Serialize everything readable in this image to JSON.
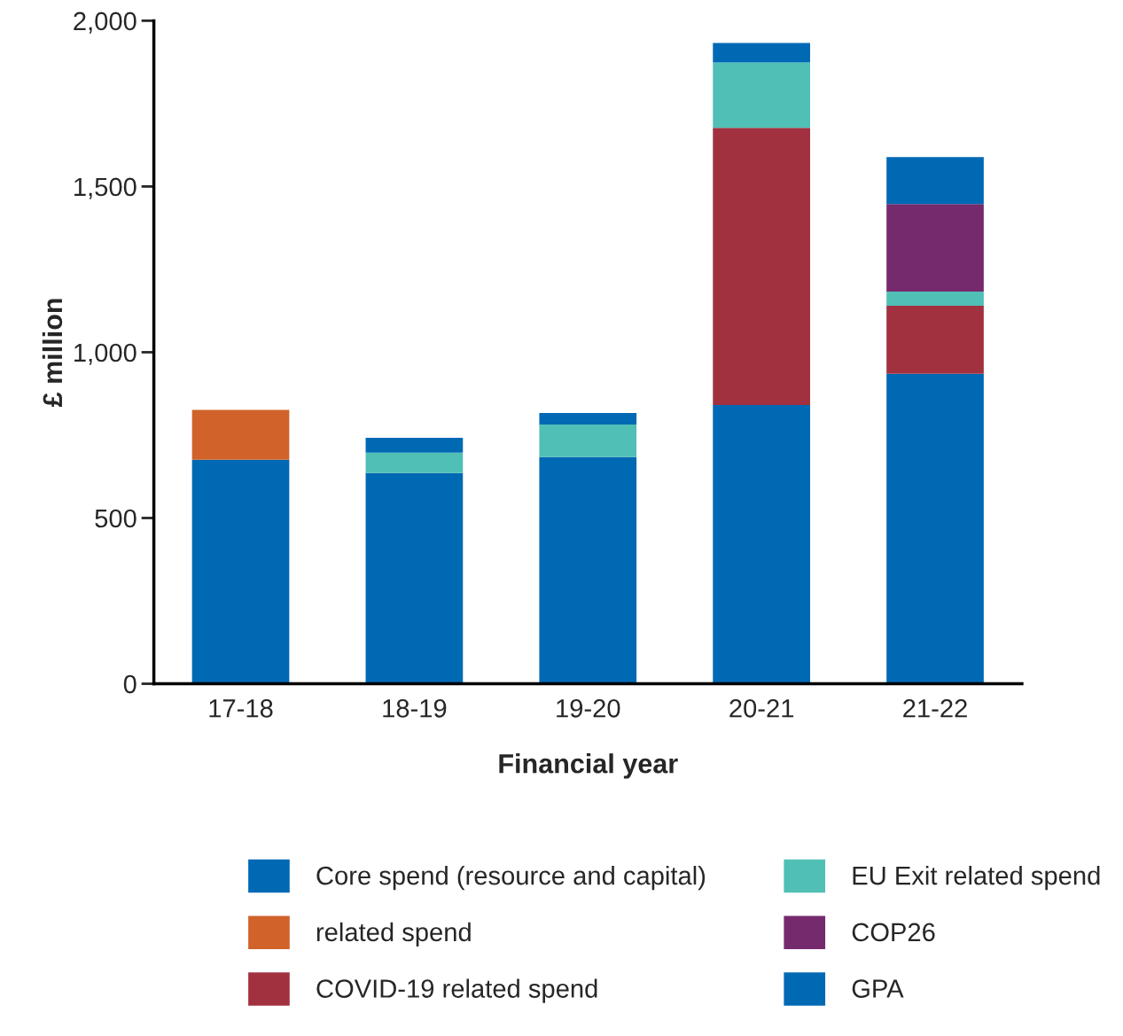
{
  "chart_data": {
    "type": "bar",
    "stacked": true,
    "xlabel": "Financial year",
    "ylabel": "£ million",
    "categories": [
      "17-18",
      "18-19",
      "19-20",
      "20-21",
      "21-22"
    ],
    "series": [
      {
        "name": "Core spend (resource and capital)",
        "color": "#0069b4",
        "values": [
          676,
          636,
          684,
          841,
          935
        ]
      },
      {
        "name": "related spend",
        "color": "#d0622a",
        "values": [
          150,
          null,
          null,
          null,
          null
        ]
      },
      {
        "name": "COVID-19 related spend",
        "color": "#a23140",
        "values": [
          null,
          null,
          null,
          836,
          205
        ]
      },
      {
        "name": "EU Exit related spend",
        "color": "#50bfb6",
        "values": [
          null,
          61,
          98,
          197,
          43
        ]
      },
      {
        "name": "COP26",
        "color": "#762a6e",
        "values": [
          null,
          null,
          null,
          null,
          264
        ]
      },
      {
        "name": "GPA",
        "color": "#0069b4",
        "values": [
          null,
          45,
          35,
          59,
          142
        ]
      }
    ],
    "ylim": [
      0,
      2000
    ],
    "yticks": [
      0,
      {
        "value": 500,
        "label": "500"
      },
      {
        "value": 1000,
        "label": "1,000"
      },
      {
        "value": 1500,
        "label": "1,500"
      },
      {
        "value": 2000,
        "label": "2,000"
      }
    ],
    "grid": false,
    "legend": "bottom"
  }
}
